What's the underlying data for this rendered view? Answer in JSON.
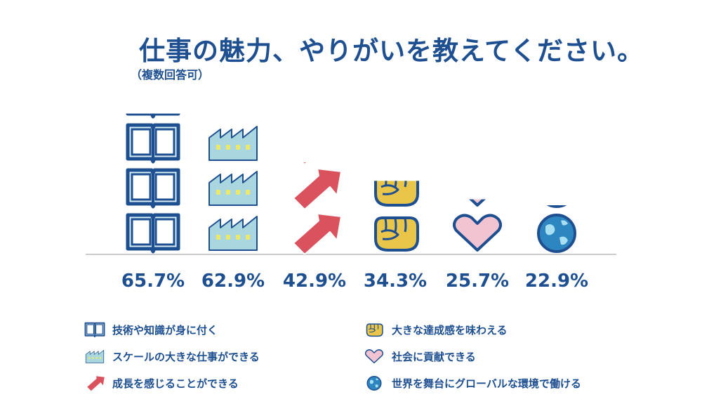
{
  "title": "仕事の魅力、やりがいを教えてください。",
  "subtitle": "（複数回答可）",
  "chart_data": {
    "type": "bar",
    "categories": [
      "技術や知識が身に付く",
      "スケールの大きな仕事ができる",
      "成長を感じることができる",
      "大きな達成感を味わえる",
      "社会に貢献できる",
      "世界を舞台にグローバルな環境で働ける"
    ],
    "values": [
      65.7,
      62.9,
      42.9,
      34.3,
      25.7,
      22.9
    ],
    "value_labels": [
      "65.7%",
      "62.9%",
      "42.9%",
      "34.3%",
      "25.7%",
      "22.9%"
    ],
    "icons": [
      "book-icon",
      "factory-icon",
      "arrow-icon",
      "fist-icon",
      "heart-icon",
      "globe-icon"
    ],
    "colors": {
      "navy": "#1d4f91",
      "light_blue": "#d8eef5",
      "factory": "#a9d6df",
      "window": "#ece86b",
      "red": "#d9525e",
      "yellow": "#e9c649",
      "pink": "#f2c4d2",
      "globe": "#2e86c1",
      "baseline": "#cccccc"
    },
    "legend_position": "bottom"
  }
}
